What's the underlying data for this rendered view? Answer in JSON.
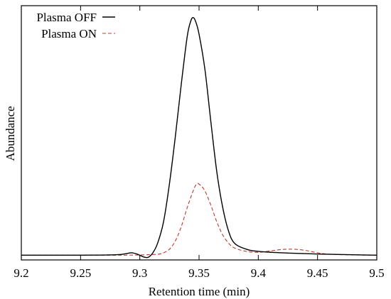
{
  "chart_data": {
    "type": "line",
    "title": "",
    "xlabel": "Retention time (min)",
    "ylabel": "Abundance",
    "xlim": [
      9.2,
      9.5
    ],
    "ylim": [
      -0.02,
      1.05
    ],
    "x_ticks": [
      "9.2",
      "9.25",
      "9.3",
      "9.35",
      "9.4",
      "9.45",
      "9.5"
    ],
    "y_ticks": [],
    "grid": false,
    "legend_position": "top-left",
    "series": [
      {
        "name": "Plasma OFF",
        "color": "#000000",
        "dash": "solid",
        "points": [
          [
            9.2,
            0.0
          ],
          [
            9.25,
            0.0
          ],
          [
            9.28,
            0.002
          ],
          [
            9.288,
            0.006
          ],
          [
            9.293,
            0.01
          ],
          [
            9.298,
            0.004
          ],
          [
            9.303,
            -0.007
          ],
          [
            9.307,
            -0.009
          ],
          [
            9.311,
            0.01
          ],
          [
            9.315,
            0.05
          ],
          [
            9.32,
            0.14
          ],
          [
            9.325,
            0.3
          ],
          [
            9.33,
            0.5
          ],
          [
            9.335,
            0.72
          ],
          [
            9.34,
            0.92
          ],
          [
            9.343,
            0.985
          ],
          [
            9.345,
            1.0
          ],
          [
            9.347,
            0.985
          ],
          [
            9.35,
            0.93
          ],
          [
            9.355,
            0.78
          ],
          [
            9.36,
            0.56
          ],
          [
            9.365,
            0.35
          ],
          [
            9.37,
            0.2
          ],
          [
            9.375,
            0.1
          ],
          [
            9.38,
            0.05
          ],
          [
            9.39,
            0.025
          ],
          [
            9.4,
            0.016
          ],
          [
            9.42,
            0.01
          ],
          [
            9.45,
            0.005
          ],
          [
            9.5,
            0.0
          ]
        ]
      },
      {
        "name": "Plasma ON",
        "color": "#c0392b",
        "dash": "dashed",
        "points": [
          [
            9.2,
            0.0
          ],
          [
            9.28,
            0.0
          ],
          [
            9.3,
            0.001
          ],
          [
            9.315,
            0.004
          ],
          [
            9.32,
            0.01
          ],
          [
            9.325,
            0.025
          ],
          [
            9.33,
            0.06
          ],
          [
            9.335,
            0.12
          ],
          [
            9.34,
            0.2
          ],
          [
            9.345,
            0.27
          ],
          [
            9.348,
            0.3
          ],
          [
            9.351,
            0.295
          ],
          [
            9.355,
            0.27
          ],
          [
            9.36,
            0.21
          ],
          [
            9.365,
            0.14
          ],
          [
            9.37,
            0.085
          ],
          [
            9.375,
            0.05
          ],
          [
            9.38,
            0.03
          ],
          [
            9.39,
            0.016
          ],
          [
            9.4,
            0.012
          ],
          [
            9.41,
            0.018
          ],
          [
            9.42,
            0.024
          ],
          [
            9.43,
            0.025
          ],
          [
            9.44,
            0.02
          ],
          [
            9.45,
            0.01
          ],
          [
            9.46,
            0.004
          ],
          [
            9.48,
            0.001
          ],
          [
            9.5,
            0.0
          ]
        ]
      }
    ]
  }
}
